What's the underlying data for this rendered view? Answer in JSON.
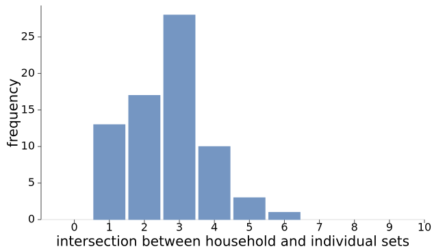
{
  "chart_data": {
    "type": "bar",
    "x_label": "intersection between household and individual sets",
    "y_label": "frequency",
    "x": [
      0,
      1,
      2,
      3,
      4,
      5,
      6,
      7,
      8,
      9
    ],
    "values": [
      0,
      13,
      17,
      28,
      10,
      3,
      1,
      0,
      0,
      0
    ],
    "color": "#7596c2",
    "xlim": [
      -0.95,
      10
    ],
    "xticks": [
      0,
      1,
      2,
      3,
      4,
      5,
      6,
      7,
      8,
      9,
      10
    ],
    "ylim": [
      0,
      29.3
    ],
    "yticks": [
      0,
      5,
      10,
      15,
      20,
      25
    ]
  }
}
